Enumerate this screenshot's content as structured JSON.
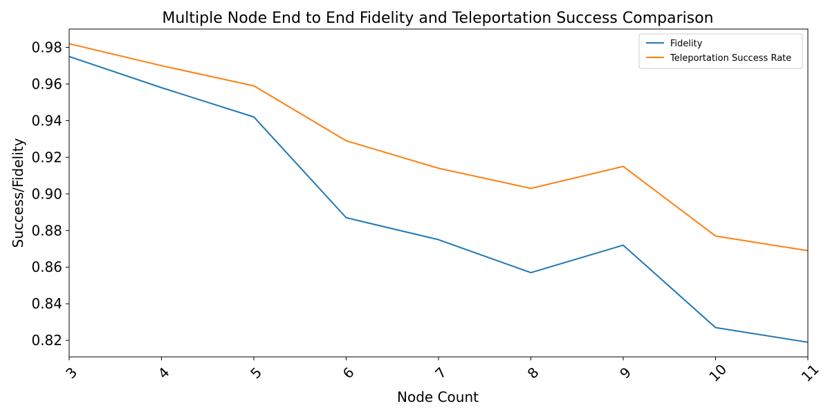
{
  "chart_data": {
    "type": "line",
    "title": "Multiple Node End to End Fidelity and Teleportation Success Comparison",
    "xlabel": "Node Count",
    "ylabel": "Success/Fidelity",
    "x": [
      3,
      4,
      5,
      6,
      7,
      8,
      9,
      10,
      11
    ],
    "xticks": [
      "3",
      "4",
      "5",
      "6",
      "7",
      "8",
      "9",
      "10",
      "11"
    ],
    "xlim": [
      3,
      11
    ],
    "ylim": [
      0.811,
      0.99
    ],
    "yticks": [
      "0.82",
      "0.84",
      "0.86",
      "0.88",
      "0.90",
      "0.92",
      "0.94",
      "0.96",
      "0.98"
    ],
    "grid": false,
    "legend_position": "top-right",
    "series": [
      {
        "name": "Fidelity",
        "color": "#1f77b4",
        "values": [
          0.975,
          0.958,
          0.942,
          0.887,
          0.875,
          0.857,
          0.872,
          0.827,
          0.819
        ]
      },
      {
        "name": "Teleportation Success Rate",
        "color": "#ff7f0e",
        "values": [
          0.982,
          0.97,
          0.959,
          0.929,
          0.914,
          0.903,
          0.915,
          0.877,
          0.869
        ]
      }
    ]
  }
}
